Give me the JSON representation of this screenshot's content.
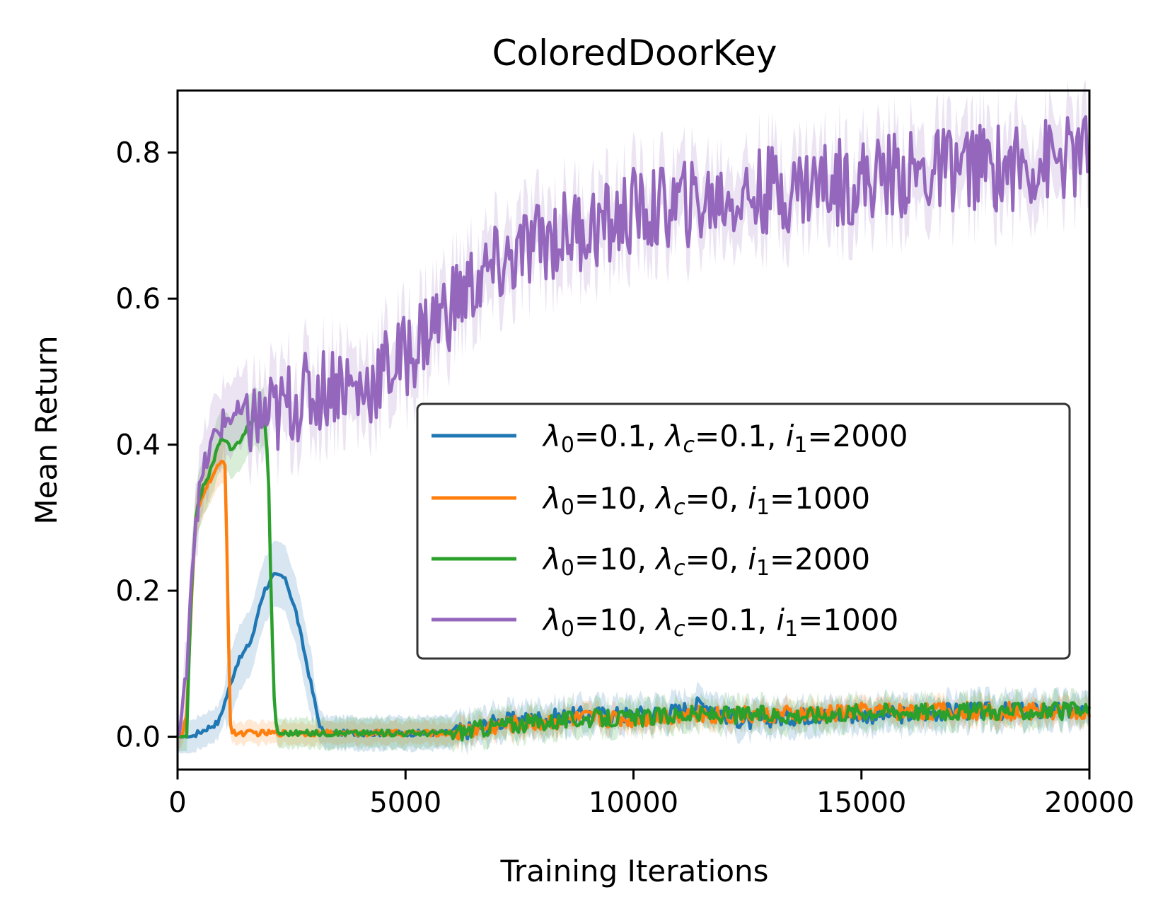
{
  "chart_data": {
    "type": "line",
    "title": "ColoredDoorKey",
    "xlabel": "Training Iterations",
    "ylabel": "Mean Return",
    "xlim": [
      0,
      20000
    ],
    "ylim": [
      -0.045,
      0.885
    ],
    "xticks": [
      0,
      5000,
      10000,
      15000,
      20000
    ],
    "xtick_labels": [
      "0",
      "5000",
      "10000",
      "15000",
      "20000"
    ],
    "yticks": [
      0.0,
      0.2,
      0.4,
      0.6,
      0.8
    ],
    "ytick_labels": [
      "0.0",
      "0.2",
      "0.4",
      "0.6",
      "0.8"
    ],
    "grid": false,
    "legend_position": "center-right",
    "series": [
      {
        "name": "λ0=0.1, λc=0.1, i1=2000",
        "legend": {
          "l0": "0.1",
          "lc": "0.1",
          "i1": "2000"
        },
        "color": "#1f77b4",
        "band": 0.045,
        "x": [
          0,
          300,
          600,
          900,
          1000,
          1100,
          1200,
          1300,
          1400,
          1500,
          1600,
          1700,
          1800,
          1900,
          2000,
          2100,
          2200,
          2300,
          2400,
          2500,
          2600,
          2700,
          2800,
          2900,
          3000,
          3100,
          3200,
          3400,
          4000,
          5000,
          6000,
          6500,
          7000,
          8000,
          9000,
          10000,
          11000,
          11500,
          11800,
          12000,
          12500,
          13000,
          14000,
          15000,
          16000,
          17000,
          18000,
          19000,
          20000
        ],
        "y": [
          0.0,
          0.0,
          0.01,
          0.02,
          0.04,
          0.06,
          0.08,
          0.1,
          0.11,
          0.12,
          0.13,
          0.15,
          0.18,
          0.2,
          0.21,
          0.22,
          0.22,
          0.22,
          0.21,
          0.19,
          0.17,
          0.14,
          0.11,
          0.08,
          0.05,
          0.02,
          0.005,
          0.005,
          0.005,
          0.005,
          0.005,
          0.01,
          0.02,
          0.025,
          0.03,
          0.03,
          0.035,
          0.045,
          0.04,
          0.03,
          0.02,
          0.025,
          0.03,
          0.03,
          0.03,
          0.035,
          0.035,
          0.035,
          0.035
        ]
      },
      {
        "name": "λ0=10, λc=0, i1=1000",
        "legend": {
          "l0": "10",
          "lc": "0",
          "i1": "1000"
        },
        "color": "#ff7f0e",
        "band": 0.03,
        "x": [
          0,
          100,
          200,
          300,
          400,
          500,
          600,
          700,
          800,
          900,
          1000,
          1050,
          1100,
          1150,
          1200,
          1500,
          2000,
          3000,
          4000,
          5000,
          6000,
          6500,
          7000,
          8000,
          9000,
          10000,
          11000,
          12000,
          13000,
          14000,
          15000,
          16000,
          17000,
          18000,
          19000,
          20000
        ],
        "y": [
          0.0,
          0.0,
          0.03,
          0.18,
          0.3,
          0.32,
          0.34,
          0.35,
          0.36,
          0.37,
          0.38,
          0.37,
          0.2,
          0.02,
          0.005,
          0.005,
          0.005,
          0.005,
          0.005,
          0.005,
          0.005,
          0.01,
          0.015,
          0.02,
          0.025,
          0.025,
          0.03,
          0.03,
          0.03,
          0.03,
          0.035,
          0.035,
          0.035,
          0.035,
          0.035,
          0.035
        ]
      },
      {
        "name": "λ0=10, λc=0, i1=2000",
        "legend": {
          "l0": "10",
          "lc": "0",
          "i1": "2000"
        },
        "color": "#2ca02c",
        "band": 0.04,
        "x": [
          0,
          200,
          300,
          400,
          500,
          600,
          700,
          800,
          900,
          1000,
          1100,
          1200,
          1300,
          1400,
          1500,
          1600,
          1700,
          1800,
          1900,
          1950,
          2000,
          2050,
          2100,
          2150,
          2200,
          2300,
          2500,
          3000,
          4000,
          5000,
          6000,
          6500,
          7000,
          8000,
          9000,
          10000,
          11000,
          12000,
          13000,
          14000,
          15000,
          16000,
          17000,
          18000,
          19000,
          20000
        ],
        "y": [
          0.0,
          0.0,
          0.2,
          0.3,
          0.33,
          0.35,
          0.36,
          0.38,
          0.4,
          0.41,
          0.4,
          0.39,
          0.4,
          0.41,
          0.42,
          0.43,
          0.44,
          0.43,
          0.44,
          0.41,
          0.34,
          0.2,
          0.08,
          0.02,
          0.005,
          0.005,
          0.005,
          0.005,
          0.005,
          0.005,
          0.005,
          0.01,
          0.015,
          0.02,
          0.025,
          0.025,
          0.03,
          0.03,
          0.03,
          0.03,
          0.035,
          0.035,
          0.035,
          0.035,
          0.035,
          0.035
        ]
      },
      {
        "name": "λ0=10, λc=0.1, i1=1000",
        "legend": {
          "l0": "10",
          "lc": "0.1",
          "i1": "1000"
        },
        "color": "#9467bd",
        "band": 0.05,
        "x": [
          0,
          100,
          200,
          300,
          400,
          500,
          600,
          700,
          800,
          900,
          1000,
          1200,
          1500,
          1800,
          2000,
          2200,
          2500,
          3000,
          3500,
          4000,
          4500,
          5000,
          5500,
          6000,
          6500,
          7000,
          7500,
          8000,
          8500,
          9000,
          9500,
          10000,
          10500,
          11000,
          11500,
          12000,
          12500,
          13000,
          13500,
          14000,
          14500,
          15000,
          15500,
          16000,
          16500,
          17000,
          17500,
          18000,
          18500,
          19000,
          19500,
          20000
        ],
        "y": [
          0.0,
          0.02,
          0.1,
          0.22,
          0.3,
          0.34,
          0.37,
          0.39,
          0.41,
          0.42,
          0.43,
          0.44,
          0.44,
          0.43,
          0.44,
          0.44,
          0.46,
          0.47,
          0.49,
          0.47,
          0.5,
          0.52,
          0.56,
          0.59,
          0.62,
          0.64,
          0.66,
          0.68,
          0.69,
          0.7,
          0.7,
          0.72,
          0.72,
          0.73,
          0.73,
          0.74,
          0.74,
          0.75,
          0.75,
          0.76,
          0.76,
          0.76,
          0.77,
          0.77,
          0.77,
          0.78,
          0.78,
          0.78,
          0.78,
          0.79,
          0.79,
          0.8
        ]
      }
    ]
  }
}
